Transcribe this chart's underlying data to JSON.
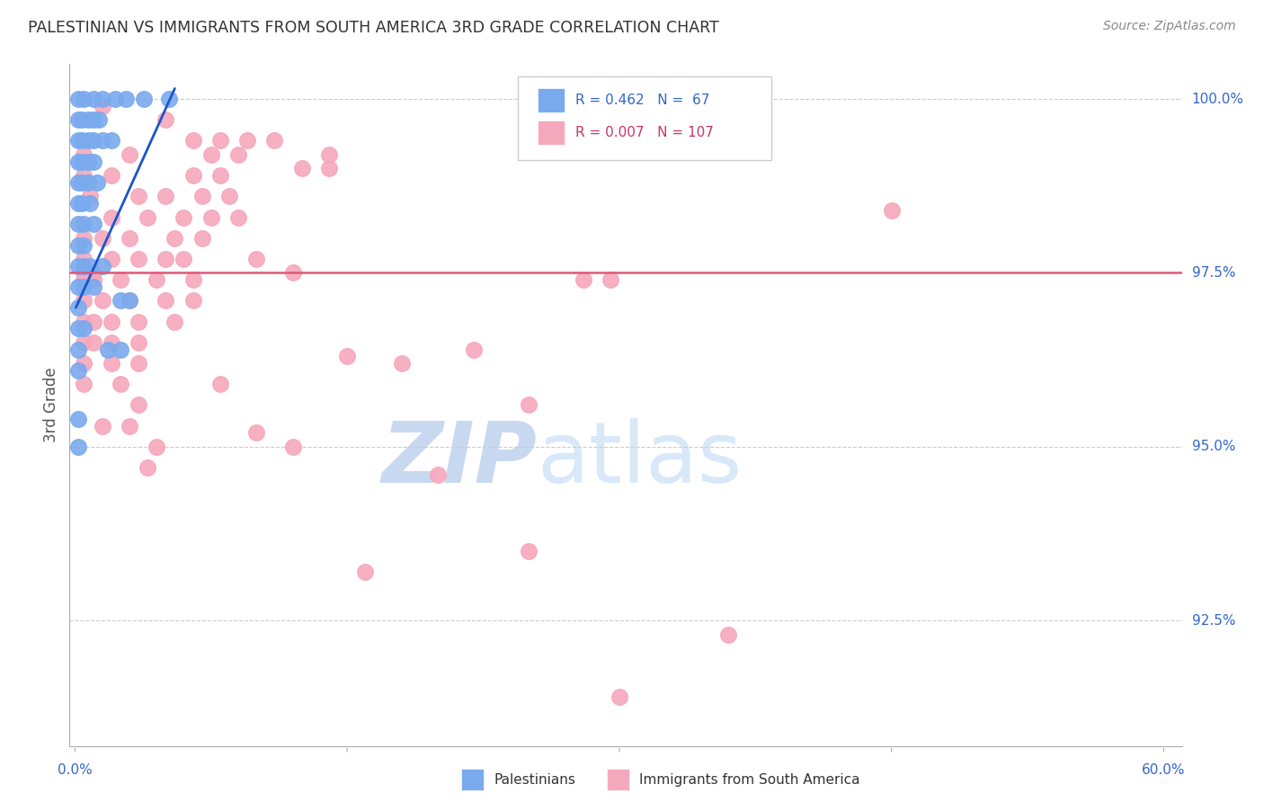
{
  "title": "PALESTINIAN VS IMMIGRANTS FROM SOUTH AMERICA 3RD GRADE CORRELATION CHART",
  "source": "Source: ZipAtlas.com",
  "ylabel": "3rd Grade",
  "ymin": 90.7,
  "ymax": 100.5,
  "xmin": -0.3,
  "xmax": 61.0,
  "blue_R": 0.462,
  "blue_N": 67,
  "pink_R": 0.007,
  "pink_N": 107,
  "hline_y": 97.5,
  "hline_color": "#e05878",
  "blue_color": "#7aaaee",
  "pink_color": "#f5a8bc",
  "blue_scatter": [
    [
      0.2,
      100.0
    ],
    [
      0.5,
      100.0
    ],
    [
      1.0,
      100.0
    ],
    [
      1.5,
      100.0
    ],
    [
      2.2,
      100.0
    ],
    [
      2.8,
      100.0
    ],
    [
      3.8,
      100.0
    ],
    [
      5.2,
      100.0
    ],
    [
      0.2,
      99.7
    ],
    [
      0.4,
      99.7
    ],
    [
      0.7,
      99.7
    ],
    [
      1.0,
      99.7
    ],
    [
      1.3,
      99.7
    ],
    [
      0.2,
      99.4
    ],
    [
      0.4,
      99.4
    ],
    [
      0.7,
      99.4
    ],
    [
      1.0,
      99.4
    ],
    [
      1.5,
      99.4
    ],
    [
      2.0,
      99.4
    ],
    [
      0.2,
      99.1
    ],
    [
      0.4,
      99.1
    ],
    [
      0.7,
      99.1
    ],
    [
      1.0,
      99.1
    ],
    [
      0.2,
      98.8
    ],
    [
      0.4,
      98.8
    ],
    [
      0.7,
      98.8
    ],
    [
      1.2,
      98.8
    ],
    [
      0.2,
      98.5
    ],
    [
      0.4,
      98.5
    ],
    [
      0.8,
      98.5
    ],
    [
      0.2,
      98.2
    ],
    [
      0.5,
      98.2
    ],
    [
      1.0,
      98.2
    ],
    [
      0.2,
      97.9
    ],
    [
      0.5,
      97.9
    ],
    [
      0.2,
      97.6
    ],
    [
      0.5,
      97.6
    ],
    [
      0.8,
      97.6
    ],
    [
      1.5,
      97.6
    ],
    [
      0.2,
      97.3
    ],
    [
      0.5,
      97.3
    ],
    [
      1.0,
      97.3
    ],
    [
      0.2,
      97.0
    ],
    [
      0.2,
      96.7
    ],
    [
      0.5,
      96.7
    ],
    [
      0.2,
      96.4
    ],
    [
      0.2,
      96.1
    ],
    [
      0.2,
      95.4
    ],
    [
      0.2,
      95.0
    ],
    [
      2.5,
      97.1
    ],
    [
      3.0,
      97.1
    ],
    [
      1.8,
      96.4
    ],
    [
      2.5,
      96.4
    ]
  ],
  "pink_scatter": [
    [
      1.5,
      99.9
    ],
    [
      5.0,
      99.7
    ],
    [
      6.5,
      99.4
    ],
    [
      8.0,
      99.4
    ],
    [
      9.5,
      99.4
    ],
    [
      11.0,
      99.4
    ],
    [
      0.5,
      99.2
    ],
    [
      3.0,
      99.2
    ],
    [
      7.5,
      99.2
    ],
    [
      9.0,
      99.2
    ],
    [
      14.0,
      99.2
    ],
    [
      0.5,
      98.9
    ],
    [
      2.0,
      98.9
    ],
    [
      6.5,
      98.9
    ],
    [
      8.0,
      98.9
    ],
    [
      0.8,
      98.6
    ],
    [
      3.5,
      98.6
    ],
    [
      5.0,
      98.6
    ],
    [
      7.0,
      98.6
    ],
    [
      8.5,
      98.6
    ],
    [
      2.0,
      98.3
    ],
    [
      4.0,
      98.3
    ],
    [
      6.0,
      98.3
    ],
    [
      7.5,
      98.3
    ],
    [
      9.0,
      98.3
    ],
    [
      0.5,
      98.0
    ],
    [
      1.5,
      98.0
    ],
    [
      3.0,
      98.0
    ],
    [
      5.5,
      98.0
    ],
    [
      7.0,
      98.0
    ],
    [
      0.5,
      97.7
    ],
    [
      2.0,
      97.7
    ],
    [
      3.5,
      97.7
    ],
    [
      5.0,
      97.7
    ],
    [
      6.0,
      97.7
    ],
    [
      0.5,
      97.4
    ],
    [
      1.0,
      97.4
    ],
    [
      2.5,
      97.4
    ],
    [
      4.5,
      97.4
    ],
    [
      6.5,
      97.4
    ],
    [
      0.5,
      97.1
    ],
    [
      1.5,
      97.1
    ],
    [
      3.0,
      97.1
    ],
    [
      5.0,
      97.1
    ],
    [
      6.5,
      97.1
    ],
    [
      0.5,
      96.8
    ],
    [
      1.0,
      96.8
    ],
    [
      2.0,
      96.8
    ],
    [
      3.5,
      96.8
    ],
    [
      5.5,
      96.8
    ],
    [
      0.5,
      96.5
    ],
    [
      1.0,
      96.5
    ],
    [
      2.0,
      96.5
    ],
    [
      3.5,
      96.5
    ],
    [
      0.5,
      96.2
    ],
    [
      2.0,
      96.2
    ],
    [
      3.5,
      96.2
    ],
    [
      0.5,
      95.9
    ],
    [
      2.5,
      95.9
    ],
    [
      8.0,
      95.9
    ],
    [
      3.5,
      95.6
    ],
    [
      1.5,
      95.3
    ],
    [
      3.0,
      95.3
    ],
    [
      4.5,
      95.0
    ],
    [
      4.0,
      94.7
    ],
    [
      45.0,
      98.4
    ],
    [
      28.0,
      97.4
    ],
    [
      29.5,
      97.4
    ],
    [
      22.0,
      96.4
    ],
    [
      25.0,
      95.6
    ],
    [
      36.0,
      92.3
    ],
    [
      30.0,
      91.4
    ],
    [
      12.5,
      99.0
    ],
    [
      14.0,
      99.0
    ],
    [
      10.0,
      97.7
    ],
    [
      12.0,
      97.5
    ],
    [
      15.0,
      96.3
    ],
    [
      18.0,
      96.2
    ],
    [
      10.0,
      95.2
    ],
    [
      12.0,
      95.0
    ],
    [
      20.0,
      94.6
    ],
    [
      25.0,
      93.5
    ],
    [
      16.0,
      93.2
    ],
    [
      0.5,
      97.5
    ],
    [
      1.0,
      97.5
    ]
  ],
  "blue_trend_x": [
    0.05,
    5.5
  ],
  "blue_trend_y": [
    97.0,
    100.15
  ],
  "background_color": "#ffffff",
  "grid_color": "#cccccc",
  "title_color": "#333333",
  "label_color": "#3366cc",
  "watermark_zip": "ZIP",
  "watermark_atlas": "atlas"
}
